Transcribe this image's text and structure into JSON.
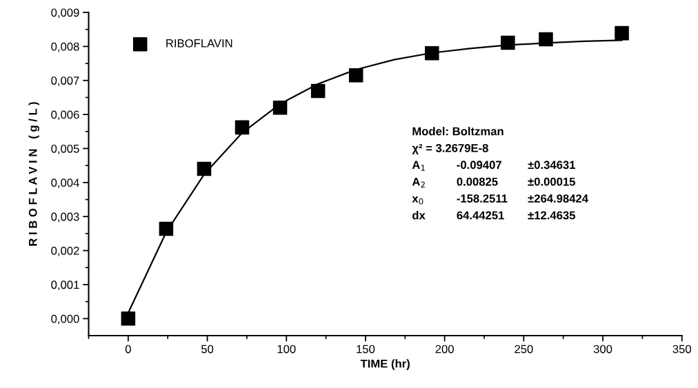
{
  "chart_data": {
    "type": "scatter",
    "xlabel": "TIME (hr)",
    "ylabel": "R I B O F L A V I N   ( g / L )",
    "xlim": [
      -25,
      350
    ],
    "xticks": [
      0,
      50,
      100,
      150,
      200,
      250,
      300,
      350
    ],
    "ylim": [
      -0.0005,
      0.009
    ],
    "yticks": [
      {
        "value": 0,
        "label": "0,000"
      },
      {
        "value": 0.001,
        "label": "0,001"
      },
      {
        "value": 0.002,
        "label": "0,002"
      },
      {
        "value": 0.003,
        "label": "0,003"
      },
      {
        "value": 0.004,
        "label": "0,004"
      },
      {
        "value": 0.005,
        "label": "0,005"
      },
      {
        "value": 0.006,
        "label": "0,006"
      },
      {
        "value": 0.007,
        "label": "0,007"
      },
      {
        "value": 0.008,
        "label": "0,008"
      },
      {
        "value": 0.009,
        "label": "0,009"
      }
    ],
    "grid": false,
    "legend": "top left",
    "series": [
      {
        "type": "line",
        "color": "#000000",
        "marker": "none",
        "line_style": "solid",
        "x": [
          0,
          24,
          48,
          72,
          96,
          120,
          144,
          168,
          192,
          216,
          240,
          264,
          288,
          312
        ],
        "values": [
          0.00017,
          0.00254,
          0.00424,
          0.00546,
          0.00631,
          0.0069,
          0.00732,
          0.00761,
          0.00781,
          0.00794,
          0.00804,
          0.0081,
          0.00815,
          0.00818
        ]
      },
      {
        "name": "RIBOFLAVIN",
        "color": "#000000",
        "marker": "square",
        "x": [
          0,
          24,
          48,
          72,
          96,
          120,
          144,
          192,
          240,
          264,
          312
        ],
        "values": [
          0,
          0.00264,
          0.0044,
          0.00562,
          0.0062,
          0.00669,
          0.00715,
          0.0078,
          0.00811,
          0.00821,
          0.00839
        ]
      }
    ],
    "annotations": [
      "Model: Boltzman",
      "χ² = 3.2679E-8",
      "A$_{1}$",
      "-0.09407",
      "±0.34631",
      "A$_{2}$",
      "0.00825",
      "±0.00015",
      "x$_{0}$",
      "-158.2511",
      "±264.98424",
      "dx",
      "64.44251",
      "±12.4635"
    ]
  }
}
